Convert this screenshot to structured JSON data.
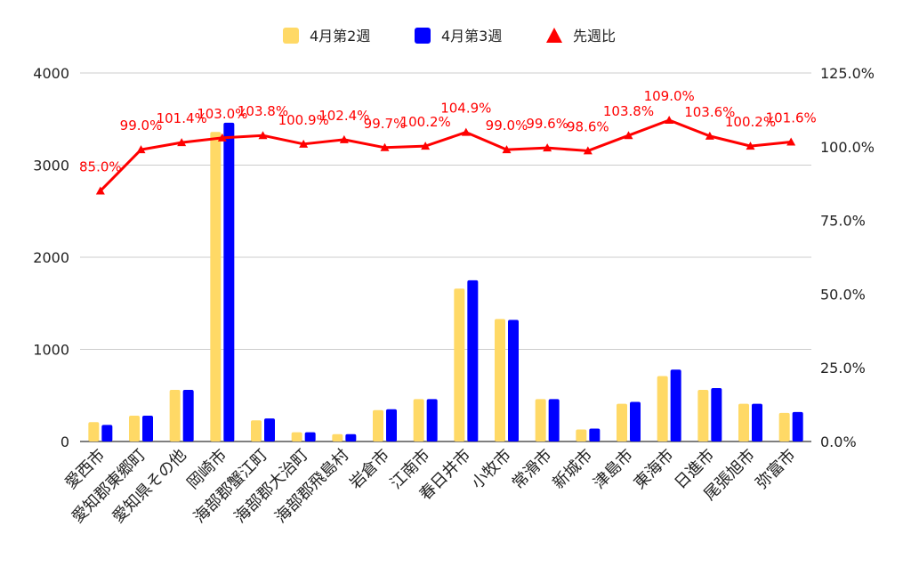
{
  "chart_data": {
    "type": "bar",
    "categories": [
      "愛西市",
      "愛知郡東郷町",
      "愛知県その他",
      "岡崎市",
      "海部郡蟹江町",
      "海部郡大治町",
      "海部郡飛島村",
      "岩倉市",
      "江南市",
      "春日井市",
      "小牧市",
      "常滑市",
      "新城市",
      "津島市",
      "東海市",
      "日進市",
      "尾張旭市",
      "弥富市"
    ],
    "series": [
      {
        "name": "4月第2週",
        "axis": "left",
        "color": "#FFD966",
        "values": [
          210,
          280,
          560,
          3360,
          230,
          100,
          80,
          340,
          460,
          1660,
          1330,
          460,
          130,
          410,
          710,
          560,
          410,
          310
        ]
      },
      {
        "name": "4月第3週",
        "axis": "left",
        "color": "#0000FF",
        "values": [
          180,
          280,
          560,
          3460,
          250,
          100,
          80,
          350,
          460,
          1750,
          1320,
          460,
          140,
          430,
          780,
          580,
          410,
          320
        ]
      },
      {
        "name": "先週比",
        "axis": "right",
        "type": "line",
        "color": "#FF0000",
        "values": [
          85.0,
          99.0,
          101.4,
          103.0,
          103.8,
          100.9,
          102.4,
          99.7,
          100.2,
          104.9,
          99.0,
          99.6,
          98.6,
          103.8,
          109.0,
          103.6,
          100.2,
          101.6
        ],
        "labels": [
          "85.0%",
          "99.0%",
          "101.4%",
          "103.0%",
          "103.8%",
          "100.9%",
          "102.4%",
          "99.7%",
          "100.2%",
          "104.9%",
          "99.0%",
          "99.6%",
          "98.6%",
          "103.8%",
          "109.0%",
          "103.6%",
          "100.2%",
          "101.6%"
        ]
      }
    ],
    "y_left": {
      "min": 0,
      "max": 4000,
      "ticks": [
        0,
        1000,
        2000,
        3000,
        4000
      ],
      "tick_labels": [
        "0",
        "1000",
        "2000",
        "3000",
        "4000"
      ]
    },
    "y_right": {
      "min": 0,
      "max": 125,
      "ticks": [
        0,
        25,
        50,
        75,
        100,
        125
      ],
      "tick_labels": [
        "0.0%",
        "25.0%",
        "50.0%",
        "75.0%",
        "100.0%",
        "125.0%"
      ]
    },
    "legend": {
      "position": "top",
      "items": [
        {
          "label": "4月第2週",
          "shape": "square",
          "color": "#FFD966"
        },
        {
          "label": "4月第3週",
          "shape": "square",
          "color": "#0000FF"
        },
        {
          "label": "先週比",
          "shape": "triangle",
          "color": "#FF0000"
        }
      ]
    },
    "grid": true
  }
}
